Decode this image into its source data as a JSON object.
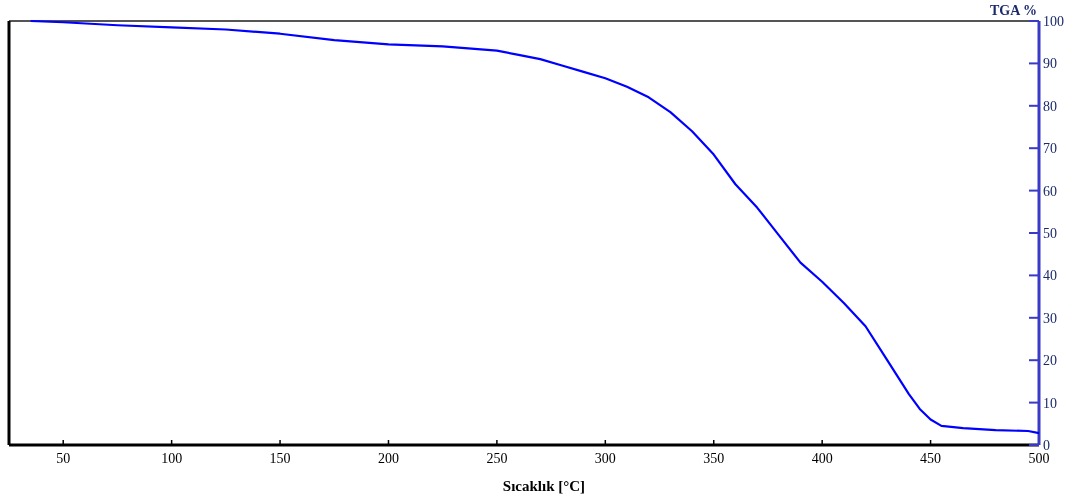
{
  "chart_data": {
    "type": "line",
    "xlabel": "Sıcaklık [°C]",
    "ylabel": "TGA %",
    "xlim": [
      25,
      500
    ],
    "xticks": [
      50,
      100,
      150,
      200,
      250,
      300,
      350,
      400,
      450,
      500
    ],
    "ylim": [
      0,
      100
    ],
    "yticks": [
      0,
      10,
      20,
      30,
      40,
      50,
      60,
      70,
      80,
      90,
      100
    ],
    "grid": false,
    "marker": "none",
    "line_style": "solid",
    "series": [
      {
        "color": "#0000ff",
        "x": [
          35,
          50,
          75,
          100,
          125,
          150,
          175,
          200,
          225,
          250,
          260,
          270,
          280,
          290,
          300,
          310,
          320,
          330,
          340,
          350,
          360,
          370,
          380,
          390,
          400,
          410,
          420,
          430,
          440,
          445,
          450,
          455,
          465,
          480,
          495,
          500
        ],
        "values": [
          100,
          99.7,
          99,
          98.5,
          98,
          97,
          95.5,
          94.5,
          94,
          93,
          92,
          91,
          89.5,
          88,
          86.5,
          84.5,
          82,
          78.5,
          74,
          68.5,
          61.5,
          56,
          49.5,
          43,
          38.5,
          33.5,
          28,
          20,
          12,
          8.5,
          6,
          4.5,
          4,
          3.5,
          3.3,
          2.8
        ]
      }
    ]
  }
}
